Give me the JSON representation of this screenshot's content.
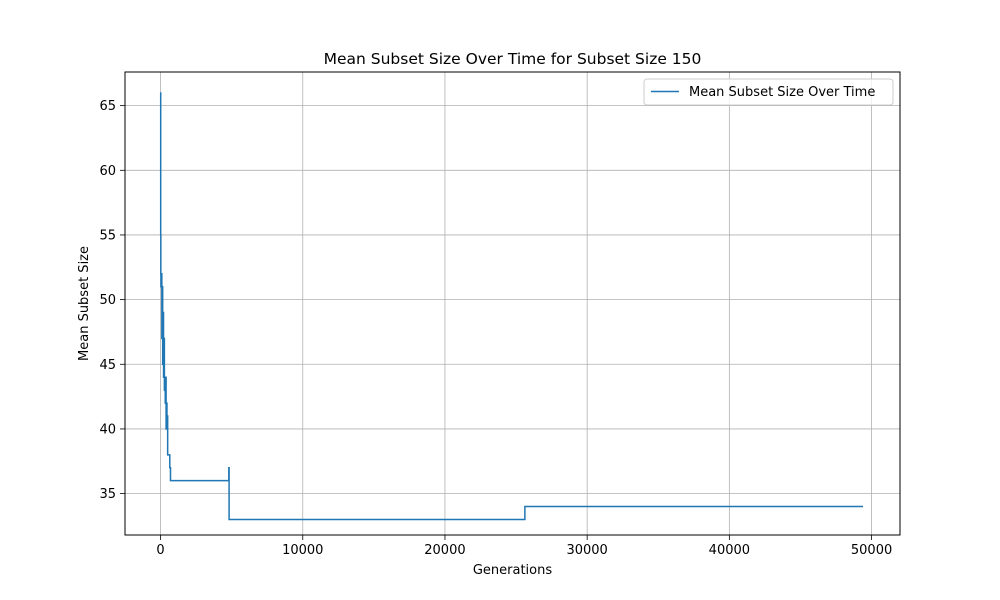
{
  "chart_data": {
    "type": "line",
    "title": "Mean Subset Size Over Time for Subset Size 150",
    "xlabel": "Generations",
    "ylabel": "Mean Subset Size",
    "xlim": [
      -2500,
      52000
    ],
    "ylim": [
      31.8,
      67.6
    ],
    "xticks": [
      0,
      10000,
      20000,
      30000,
      40000,
      50000
    ],
    "yticks": [
      35,
      40,
      45,
      50,
      55,
      60,
      65
    ],
    "grid": true,
    "legend_position": "top-right",
    "series": [
      {
        "name": "Mean Subset Size Over Time",
        "color": "#1f77b4",
        "step": true,
        "points": [
          [
            0,
            66
          ],
          [
            10,
            55
          ],
          [
            20,
            52
          ],
          [
            30,
            51
          ],
          [
            60,
            52
          ],
          [
            90,
            47
          ],
          [
            120,
            51
          ],
          [
            150,
            45
          ],
          [
            180,
            49
          ],
          [
            210,
            44
          ],
          [
            240,
            47
          ],
          [
            270,
            43
          ],
          [
            300,
            44
          ],
          [
            330,
            42
          ],
          [
            360,
            44
          ],
          [
            390,
            40
          ],
          [
            420,
            42
          ],
          [
            450,
            40
          ],
          [
            480,
            41
          ],
          [
            500,
            38
          ],
          [
            600,
            38
          ],
          [
            650,
            37
          ],
          [
            700,
            36
          ],
          [
            4800,
            36
          ],
          [
            4800,
            37
          ],
          [
            4820,
            33
          ],
          [
            25600,
            33
          ],
          [
            25620,
            34
          ],
          [
            49400,
            34
          ]
        ]
      }
    ]
  }
}
